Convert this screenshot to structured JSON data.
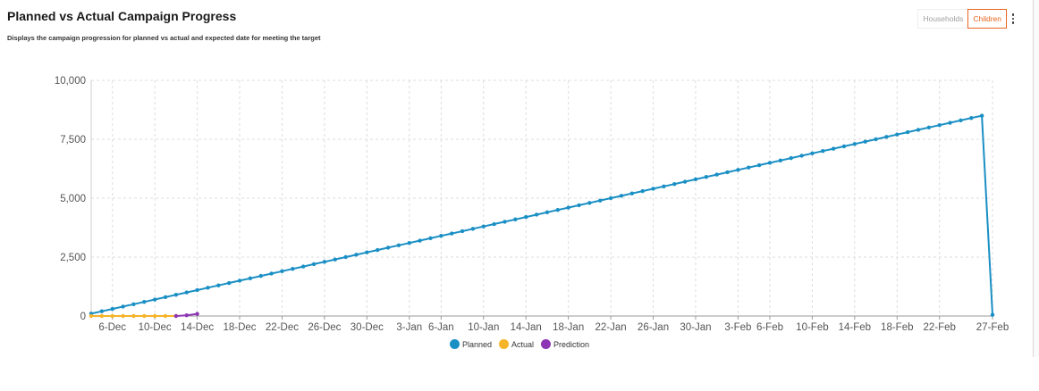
{
  "header": {
    "title": "Planned vs Actual Campaign Progress",
    "subtitle": "Displays the campaign progression for planned vs actual and expected date for meeting the target"
  },
  "toggle": {
    "households_label": "Households",
    "children_label": "Children",
    "selected": "Children",
    "menu_icon": "more-vertical-icon"
  },
  "colors": {
    "planned": "#1a8fc4",
    "actual": "#f5b42a",
    "prediction": "#8e35b5",
    "accent": "#e8661e",
    "grid": "#dddddd"
  },
  "chart_data": {
    "type": "line",
    "title": "",
    "xlabel": "",
    "ylabel": "",
    "ylim": [
      0,
      10000
    ],
    "y_ticks": [
      "0",
      "2,500",
      "5,000",
      "7,500",
      "10,000"
    ],
    "x_ticks": [
      "6-Dec",
      "10-Dec",
      "14-Dec",
      "18-Dec",
      "22-Dec",
      "26-Dec",
      "30-Dec",
      "3-Jan",
      "6-Jan",
      "10-Jan",
      "14-Jan",
      "18-Jan",
      "22-Jan",
      "26-Jan",
      "30-Jan",
      "3-Feb",
      "6-Feb",
      "10-Feb",
      "14-Feb",
      "18-Feb",
      "22-Feb",
      "27-Feb"
    ],
    "grid": true,
    "legend_position": "bottom-center",
    "series": [
      {
        "name": "Planned",
        "color_key": "planned",
        "x": [
          "4-Dec",
          "5-Dec",
          "6-Dec",
          "7-Dec",
          "8-Dec",
          "9-Dec",
          "10-Dec",
          "11-Dec",
          "12-Dec",
          "13-Dec",
          "14-Dec",
          "15-Dec",
          "16-Dec",
          "17-Dec",
          "18-Dec",
          "19-Dec",
          "20-Dec",
          "21-Dec",
          "22-Dec",
          "23-Dec",
          "24-Dec",
          "25-Dec",
          "26-Dec",
          "27-Dec",
          "28-Dec",
          "29-Dec",
          "30-Dec",
          "31-Dec",
          "1-Jan",
          "2-Jan",
          "3-Jan",
          "4-Jan",
          "5-Jan",
          "6-Jan",
          "7-Jan",
          "8-Jan",
          "9-Jan",
          "10-Jan",
          "11-Jan",
          "12-Jan",
          "13-Jan",
          "14-Jan",
          "15-Jan",
          "16-Jan",
          "17-Jan",
          "18-Jan",
          "19-Jan",
          "20-Jan",
          "21-Jan",
          "22-Jan",
          "23-Jan",
          "24-Jan",
          "25-Jan",
          "26-Jan",
          "27-Jan",
          "28-Jan",
          "29-Jan",
          "30-Jan",
          "31-Jan",
          "1-Feb",
          "2-Feb",
          "3-Feb",
          "4-Feb",
          "5-Feb",
          "6-Feb",
          "7-Feb",
          "8-Feb",
          "9-Feb",
          "10-Feb",
          "11-Feb",
          "12-Feb",
          "13-Feb",
          "14-Feb",
          "15-Feb",
          "16-Feb",
          "17-Feb",
          "18-Feb",
          "19-Feb",
          "20-Feb",
          "21-Feb",
          "22-Feb",
          "23-Feb",
          "24-Feb",
          "25-Feb",
          "26-Feb",
          "27-Feb"
        ],
        "values": [
          100,
          200,
          300,
          400,
          500,
          600,
          700,
          800,
          900,
          1000,
          1100,
          1200,
          1300,
          1400,
          1500,
          1600,
          1700,
          1800,
          1900,
          2000,
          2100,
          2200,
          2300,
          2400,
          2500,
          2600,
          2700,
          2800,
          2900,
          3000,
          3100,
          3200,
          3300,
          3400,
          3500,
          3600,
          3700,
          3800,
          3900,
          4000,
          4100,
          4200,
          4300,
          4400,
          4500,
          4600,
          4700,
          4800,
          4900,
          5000,
          5100,
          5200,
          5300,
          5400,
          5500,
          5600,
          5700,
          5800,
          5900,
          6000,
          6100,
          6200,
          6300,
          6400,
          6500,
          6600,
          6700,
          6800,
          6900,
          7000,
          7100,
          7200,
          7300,
          7400,
          7500,
          7600,
          7700,
          7800,
          7900,
          8000,
          8100,
          8200,
          8300,
          8400,
          8500,
          50
        ]
      },
      {
        "name": "Actual",
        "color_key": "actual",
        "x": [
          "4-Dec",
          "5-Dec",
          "6-Dec",
          "7-Dec",
          "8-Dec",
          "9-Dec",
          "10-Dec",
          "11-Dec",
          "12-Dec"
        ],
        "values": [
          0,
          0,
          0,
          0,
          0,
          0,
          0,
          0,
          0
        ]
      },
      {
        "name": "Prediction",
        "color_key": "prediction",
        "x": [
          "12-Dec",
          "13-Dec",
          "14-Dec"
        ],
        "values": [
          0,
          30,
          90
        ]
      }
    ]
  }
}
